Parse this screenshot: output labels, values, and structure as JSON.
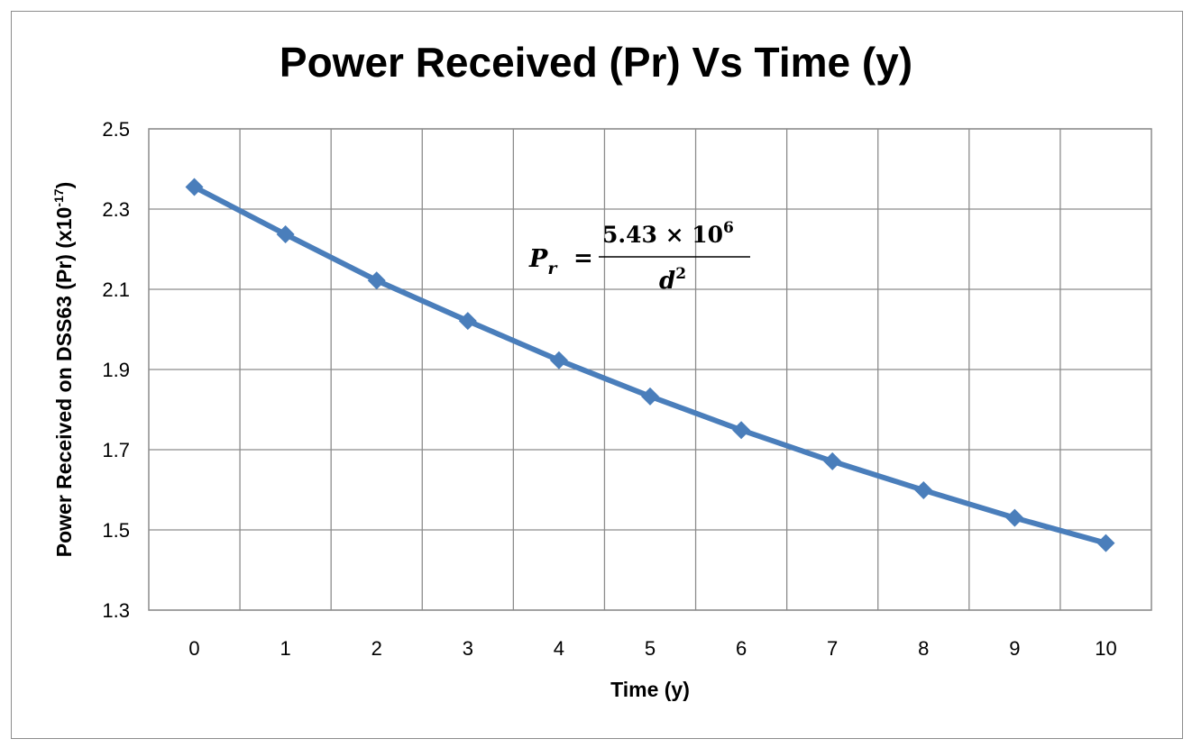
{
  "chart_data": {
    "type": "line",
    "title": "Power Received (Pr) Vs Time (y)",
    "xlabel": "Time (y)",
    "ylabel": {
      "prefix": "Power Received on DSS63 (Pr) (x10",
      "exponent": "-17",
      "suffix": ")"
    },
    "categories": [
      "0",
      "1",
      "2",
      "3",
      "4",
      "5",
      "6",
      "7",
      "8",
      "9",
      "10"
    ],
    "y_ticks": [
      "1.3",
      "1.5",
      "1.7",
      "1.9",
      "2.1",
      "2.3",
      "2.5"
    ],
    "ylim": [
      1.3,
      2.5
    ],
    "grid": true,
    "series": [
      {
        "values": [
          2.355,
          2.237,
          2.122,
          2.021,
          1.923,
          1.833,
          1.749,
          1.671,
          1.599,
          1.53,
          1.467
        ],
        "color": "#4a7ebb",
        "marker": "diamond"
      }
    ],
    "annotations": [
      {
        "type": "formula",
        "lhs": "P",
        "lhs_sub": "r",
        "equals": "=",
        "numerator": "5.43  × 10",
        "numerator_exp": "6",
        "denominator": "d",
        "denominator_exp": "2"
      }
    ]
  }
}
